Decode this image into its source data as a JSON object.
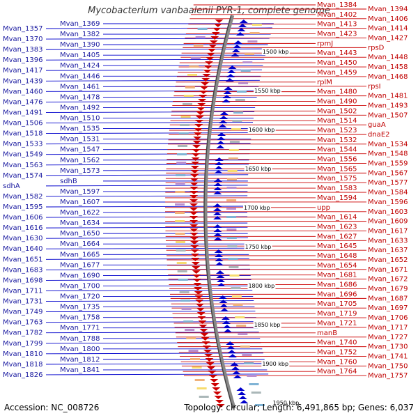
{
  "title": "Mycobacterium vanbaalenii PYR-1, complete genome",
  "footer": {
    "accession": "Accession: NC_008726",
    "topology": "Topology: circular; Length: 6,491,865 bp; Genes: 6,037"
  },
  "colors": {
    "forward": "#0000cc",
    "reverse": "#cc0000",
    "backbone": "#888888",
    "tick": "#228b22"
  },
  "kbp_ticks": [
    "1500 kbp",
    "1550 kbp",
    "1600 kbp",
    "1650 kbp",
    "1700 kbp",
    "1750 kbp",
    "1800 kbp",
    "1850 kbp",
    "1900 kbp",
    "1950 kbp"
  ],
  "left_labels": [
    "Mvan_1357",
    "Mvan_1369",
    "Mvan_1370",
    "Mvan_1382",
    "Mvan_1383",
    "Mvan_1390",
    "Mvan_1396",
    "Mvan_1405",
    "Mvan_1417",
    "Mvan_1424",
    "Mvan_1439",
    "Mvan_1446",
    "Mvan_1460",
    "Mvan_1461",
    "Mvan_1476",
    "Mvan_1478",
    "Mvan_1491",
    "Mvan_1492",
    "Mvan_1506",
    "Mvan_1510",
    "Mvan_1518",
    "Mvan_1535",
    "Mvan_1533",
    "Mvan_1531",
    "Mvan_1549",
    "Mvan_1547",
    "Mvan_1563",
    "Mvan_1562",
    "Mvan_1574",
    "Mvan_1573",
    "sdhA",
    "sdhB",
    "Mvan_1582",
    "Mvan_1597",
    "Mvan_1595",
    "Mvan_1607",
    "Mvan_1606",
    "Mvan_1622",
    "Mvan_1616",
    "Mvan_1634",
    "Mvan_1630",
    "Mvan_1650",
    "Mvan_1640",
    "Mvan_1664",
    "Mvan_1651",
    "Mvan_1665",
    "Mvan_1683",
    "Mvan_1677",
    "Mvan_1698",
    "Mvan_1690",
    "Mvan_1711",
    "Mvan_1700",
    "Mvan_1731",
    "Mvan_1720",
    "Mvan_1749",
    "Mvan_1735",
    "Mvan_1763",
    "Mvan_1758",
    "Mvan_1782",
    "Mvan_1771",
    "Mvan_1799",
    "Mvan_1788",
    "Mvan_1810",
    "Mvan_1800",
    "Mvan_1818",
    "Mvan_1812",
    "Mvan_1826",
    "Mvan_1841"
  ],
  "right_labels": [
    "Mvan_1384",
    "Mvan_1394",
    "Mvan_1402",
    "Mvan_1406",
    "Mvan_1413",
    "Mvan_1414",
    "Mvan_1423",
    "Mvan_1427",
    "rpmJ",
    "rpsD",
    "Mvan_1443",
    "Mvan_1448",
    "Mvan_1450",
    "Mvan_1458",
    "Mvan_1459",
    "Mvan_1468",
    "rplM",
    "rpsI",
    "Mvan_1480",
    "Mvan_1481",
    "Mvan_1490",
    "Mvan_1493",
    "Mvan_1502",
    "Mvan_1507",
    "Mvan_1514",
    "guaA",
    "Mvan_1523",
    "dnaE2",
    "Mvan_1532",
    "Mvan_1534",
    "Mvan_1544",
    "Mvan_1548",
    "Mvan_1556",
    "Mvan_1559",
    "Mvan_1565",
    "Mvan_1567",
    "Mvan_1575",
    "Mvan_1577",
    "Mvan_1583",
    "Mvan_1584",
    "Mvan_1594",
    "Mvan_1596",
    "upp",
    "Mvan_1603",
    "Mvan_1614",
    "Mvan_1609",
    "Mvan_1623",
    "Mvan_1617",
    "Mvan_1627",
    "Mvan_1633",
    "Mvan_1645",
    "Mvan_1637",
    "Mvan_1648",
    "Mvan_1652",
    "Mvan_1654",
    "Mvan_1671",
    "Mvan_1681",
    "Mvan_1672",
    "Mvan_1686",
    "Mvan_1679",
    "Mvan_1696",
    "Mvan_1687",
    "Mvan_1705",
    "Mvan_1697",
    "Mvan_1719",
    "Mvan_1706",
    "Mvan_1721",
    "Mvan_1717",
    "manB",
    "Mvan_1727",
    "Mvan_1740",
    "Mvan_1730",
    "Mvan_1752",
    "Mvan_1741",
    "Mvan_1760",
    "Mvan_1750",
    "Mvan_1764",
    "Mvan_1757"
  ]
}
